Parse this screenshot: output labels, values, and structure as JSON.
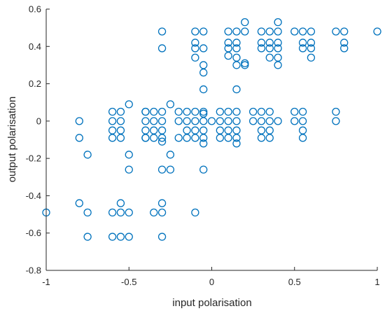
{
  "chart_data": {
    "type": "scatter",
    "title": "",
    "xlabel": "input polarisation",
    "ylabel": "output polarisation",
    "xlim": [
      -1,
      1
    ],
    "ylim": [
      -0.8,
      0.6
    ],
    "xticks": [
      -1,
      -0.5,
      0,
      0.5,
      1
    ],
    "xtick_labels": [
      "-1",
      "-0.5",
      "0",
      "0.5",
      "1"
    ],
    "yticks": [
      -0.8,
      -0.6,
      -0.4,
      -0.2,
      0,
      0.2,
      0.4,
      0.6
    ],
    "ytick_labels": [
      "-0.8",
      "-0.6",
      "-0.4",
      "-0.2",
      "0",
      "0.2",
      "0.4",
      "0.6"
    ],
    "grid": false,
    "legend": "none",
    "marker": "circle-open",
    "color": "#0072BD",
    "series": [
      {
        "points": [
          [
            -1.0,
            -0.49
          ],
          [
            -0.8,
            0.0
          ],
          [
            -0.8,
            -0.09
          ],
          [
            -0.8,
            -0.44
          ],
          [
            -0.75,
            -0.18
          ],
          [
            -0.75,
            -0.49
          ],
          [
            -0.75,
            -0.62
          ],
          [
            -0.6,
            0.05
          ],
          [
            -0.6,
            0.0
          ],
          [
            -0.6,
            -0.05
          ],
          [
            -0.6,
            -0.09
          ],
          [
            -0.6,
            -0.49
          ],
          [
            -0.6,
            -0.62
          ],
          [
            -0.55,
            0.05
          ],
          [
            -0.55,
            0.0
          ],
          [
            -0.55,
            -0.05
          ],
          [
            -0.55,
            -0.09
          ],
          [
            -0.55,
            -0.44
          ],
          [
            -0.55,
            -0.49
          ],
          [
            -0.55,
            -0.62
          ],
          [
            -0.5,
            0.09
          ],
          [
            -0.5,
            -0.18
          ],
          [
            -0.5,
            -0.26
          ],
          [
            -0.5,
            -0.49
          ],
          [
            -0.5,
            -0.62
          ],
          [
            -0.4,
            0.05
          ],
          [
            -0.4,
            0.0
          ],
          [
            -0.4,
            -0.05
          ],
          [
            -0.4,
            -0.09
          ],
          [
            -0.4,
            0.05
          ],
          [
            -0.4,
            -0.09
          ],
          [
            -0.35,
            0.05
          ],
          [
            -0.35,
            0.0
          ],
          [
            -0.35,
            -0.05
          ],
          [
            -0.35,
            -0.09
          ],
          [
            -0.35,
            -0.49
          ],
          [
            -0.3,
            0.48
          ],
          [
            -0.3,
            0.39
          ],
          [
            -0.3,
            0.05
          ],
          [
            -0.3,
            0.0
          ],
          [
            -0.3,
            -0.05
          ],
          [
            -0.3,
            -0.09
          ],
          [
            -0.3,
            -0.11
          ],
          [
            -0.3,
            -0.26
          ],
          [
            -0.3,
            -0.44
          ],
          [
            -0.3,
            -0.49
          ],
          [
            -0.3,
            -0.62
          ],
          [
            -0.25,
            0.09
          ],
          [
            -0.25,
            -0.18
          ],
          [
            -0.25,
            -0.26
          ],
          [
            -0.2,
            0.05
          ],
          [
            -0.2,
            0.0
          ],
          [
            -0.2,
            -0.09
          ],
          [
            -0.15,
            0.05
          ],
          [
            -0.15,
            0.0
          ],
          [
            -0.15,
            -0.05
          ],
          [
            -0.15,
            -0.09
          ],
          [
            -0.1,
            0.48
          ],
          [
            -0.1,
            0.42
          ],
          [
            -0.1,
            0.39
          ],
          [
            -0.1,
            0.34
          ],
          [
            -0.1,
            0.05
          ],
          [
            -0.1,
            0.0
          ],
          [
            -0.1,
            -0.05
          ],
          [
            -0.1,
            -0.09
          ],
          [
            -0.1,
            -0.49
          ],
          [
            -0.05,
            0.48
          ],
          [
            -0.05,
            0.39
          ],
          [
            -0.05,
            0.3
          ],
          [
            -0.05,
            0.26
          ],
          [
            -0.05,
            0.17
          ],
          [
            -0.05,
            0.05
          ],
          [
            -0.05,
            0.04
          ],
          [
            -0.05,
            0.0
          ],
          [
            -0.05,
            -0.05
          ],
          [
            -0.05,
            -0.09
          ],
          [
            -0.05,
            -0.12
          ],
          [
            -0.05,
            -0.26
          ],
          [
            0.0,
            0.0
          ],
          [
            0.05,
            0.05
          ],
          [
            0.05,
            0.0
          ],
          [
            0.05,
            -0.05
          ],
          [
            0.05,
            -0.09
          ],
          [
            0.1,
            0.48
          ],
          [
            0.1,
            0.42
          ],
          [
            0.1,
            0.39
          ],
          [
            0.1,
            0.35
          ],
          [
            0.1,
            0.05
          ],
          [
            0.1,
            0.0
          ],
          [
            0.1,
            -0.05
          ],
          [
            0.1,
            -0.09
          ],
          [
            0.15,
            0.48
          ],
          [
            0.15,
            0.42
          ],
          [
            0.15,
            0.39
          ],
          [
            0.15,
            0.34
          ],
          [
            0.15,
            0.3
          ],
          [
            0.15,
            0.17
          ],
          [
            0.15,
            0.05
          ],
          [
            0.15,
            0.0
          ],
          [
            0.15,
            -0.05
          ],
          [
            0.15,
            -0.09
          ],
          [
            0.15,
            -0.12
          ],
          [
            0.2,
            0.53
          ],
          [
            0.2,
            0.48
          ],
          [
            0.2,
            0.31
          ],
          [
            0.2,
            0.3
          ],
          [
            0.25,
            0.05
          ],
          [
            0.25,
            0.0
          ],
          [
            0.3,
            0.48
          ],
          [
            0.3,
            0.42
          ],
          [
            0.3,
            0.39
          ],
          [
            0.3,
            0.05
          ],
          [
            0.3,
            0.0
          ],
          [
            0.3,
            -0.05
          ],
          [
            0.3,
            -0.09
          ],
          [
            0.35,
            0.48
          ],
          [
            0.35,
            0.42
          ],
          [
            0.35,
            0.39
          ],
          [
            0.35,
            0.34
          ],
          [
            0.35,
            0.05
          ],
          [
            0.35,
            0.0
          ],
          [
            0.35,
            -0.05
          ],
          [
            0.35,
            -0.09
          ],
          [
            0.4,
            0.53
          ],
          [
            0.4,
            0.48
          ],
          [
            0.4,
            0.42
          ],
          [
            0.4,
            0.39
          ],
          [
            0.4,
            0.34
          ],
          [
            0.4,
            0.3
          ],
          [
            0.4,
            0.0
          ],
          [
            0.5,
            0.48
          ],
          [
            0.5,
            0.05
          ],
          [
            0.5,
            0.0
          ],
          [
            0.55,
            0.48
          ],
          [
            0.55,
            0.42
          ],
          [
            0.55,
            0.39
          ],
          [
            0.55,
            0.05
          ],
          [
            0.55,
            0.0
          ],
          [
            0.55,
            -0.05
          ],
          [
            0.55,
            -0.09
          ],
          [
            0.6,
            0.48
          ],
          [
            0.6,
            0.42
          ],
          [
            0.6,
            0.39
          ],
          [
            0.6,
            0.34
          ],
          [
            0.75,
            0.48
          ],
          [
            0.75,
            0.05
          ],
          [
            0.75,
            0.0
          ],
          [
            0.8,
            0.48
          ],
          [
            0.8,
            0.42
          ],
          [
            0.8,
            0.39
          ],
          [
            1.0,
            0.48
          ]
        ]
      }
    ]
  }
}
